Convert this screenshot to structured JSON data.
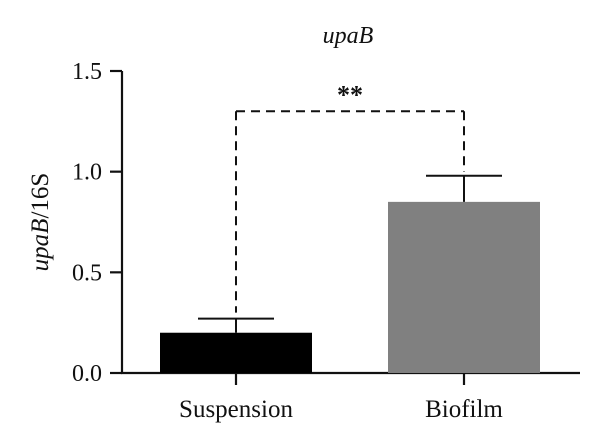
{
  "chart_data": {
    "type": "bar",
    "title": "upaB",
    "ylabel": {
      "italic_part": "upaB",
      "plain_part": "/16S"
    },
    "xlabel": "",
    "categories": [
      "Suspension",
      "Biofilm"
    ],
    "values": [
      0.2,
      0.85
    ],
    "errors": [
      0.07,
      0.13
    ],
    "ylim": [
      0,
      1.5
    ],
    "yticks": [
      0.0,
      0.5,
      1.0,
      1.5
    ],
    "ytick_labels": [
      "0.0",
      "0.5",
      "1.0",
      "1.5"
    ],
    "bar_colors": [
      "#000000",
      "#808080"
    ],
    "significance": {
      "label": "**",
      "y": 1.3,
      "between": [
        "Suspension",
        "Biofilm"
      ],
      "line_style": "dashed"
    },
    "grid": false,
    "legend": "none"
  }
}
